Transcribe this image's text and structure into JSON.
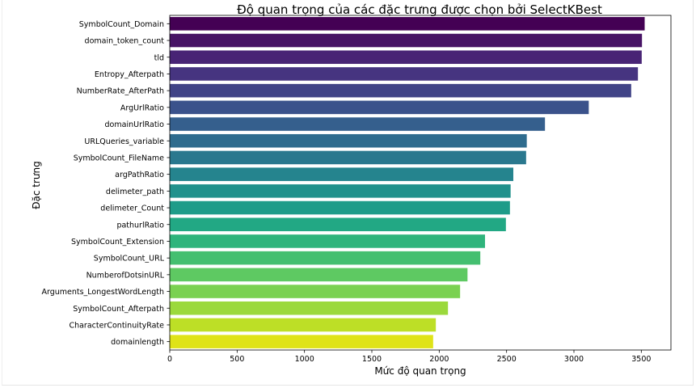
{
  "chart_data": {
    "type": "bar",
    "orientation": "horizontal",
    "title": "Độ quan trọng của các đặc trưng được chọn bởi SelectKBest",
    "xlabel": "Mức độ quan trọng",
    "ylabel": "Đặc trưng",
    "xlim": [
      0,
      3720
    ],
    "xticks": [
      0,
      500,
      1000,
      1500,
      2000,
      2500,
      3000,
      3500
    ],
    "xtick_labels": [
      "0",
      "500",
      "1000",
      "1500",
      "2000",
      "2500",
      "3000",
      "3500"
    ],
    "grid": false,
    "colormap": "viridis",
    "categories": [
      "SymbolCount_Domain",
      "domain_token_count",
      "tld",
      "Entropy_Afterpath",
      "NumberRate_AfterPath",
      "ArgUrlRatio",
      "domainUrlRatio",
      "URLQueries_variable",
      "SymbolCount_FileName",
      "argPathRatio",
      "delimeter_path",
      "delimeter_Count",
      "pathurlRatio",
      "SymbolCount_Extension",
      "SymbolCount_URL",
      "NumberofDotsinURL",
      "Arguments_LongestWordLength",
      "SymbolCount_Afterpath",
      "CharacterContinuityRate",
      "domainlength"
    ],
    "values": [
      3525,
      3505,
      3503,
      3475,
      3425,
      3110,
      2785,
      2650,
      2645,
      2550,
      2530,
      2525,
      2495,
      2340,
      2305,
      2210,
      2155,
      2065,
      1975,
      1955
    ],
    "colors": [
      "#440154",
      "#471365",
      "#482475",
      "#463480",
      "#414487",
      "#3b528b",
      "#355f8d",
      "#2f6c8e",
      "#2a788e",
      "#25848e",
      "#21918c",
      "#1e9c89",
      "#22a884",
      "#2fb47c",
      "#44bf70",
      "#5ec962",
      "#7ad151",
      "#9bd93c",
      "#bddf26",
      "#dfe318"
    ]
  }
}
